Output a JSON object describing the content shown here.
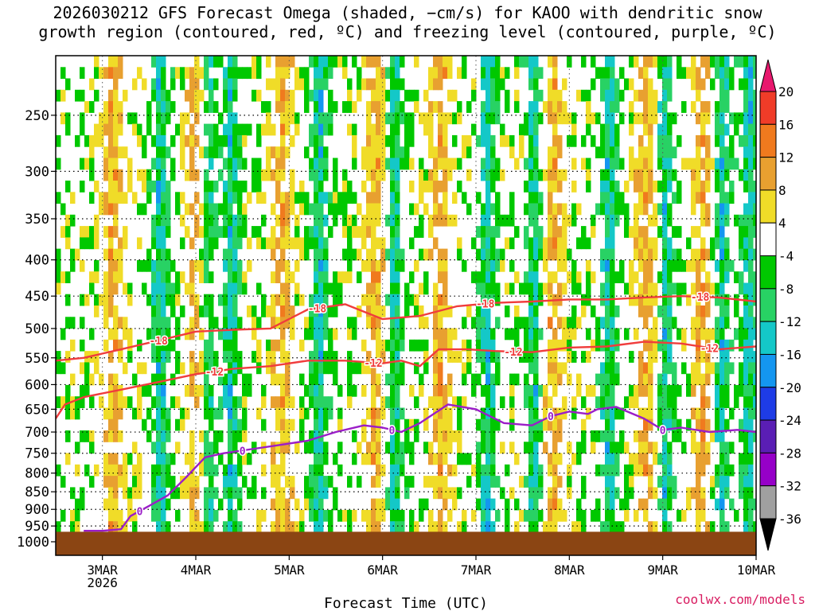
{
  "title_line1": "2026030212 GFS Forecast Omega (shaded, −cm/s) for KAOO with dendritic snow",
  "title_line2": "growth region (contoured, red, ºC) and freezing level (contoured, purple, ºC)",
  "credit": "coolwx.com/models",
  "chart_data": {
    "type": "heatmap",
    "xlabel": "Forecast Time (UTC)",
    "ylabel": "",
    "x_ticks": [
      "3MAR",
      "4MAR",
      "5MAR",
      "6MAR",
      "7MAR",
      "8MAR",
      "9MAR",
      "10MAR"
    ],
    "x_tick_values": [
      1,
      2,
      3,
      4,
      5,
      6,
      7,
      8
    ],
    "x_year_label": "2026",
    "xlim": [
      0.5,
      8
    ],
    "y_ticks": [
      250,
      300,
      350,
      400,
      450,
      500,
      550,
      600,
      650,
      700,
      750,
      800,
      850,
      900,
      950,
      1000
    ],
    "ylim": [
      1000,
      200
    ],
    "y_scale": "log-pressure (inverted)",
    "grid": true,
    "colorbar": {
      "labels": [
        "20",
        "16",
        "12",
        "8",
        "4",
        "-4",
        "-8",
        "-12",
        "-16",
        "-20",
        "-24",
        "-28",
        "-32",
        "-36"
      ],
      "colors": [
        "#e8186e",
        "#f03c28",
        "#f07a1e",
        "#e8a030",
        "#f0dc28",
        "#ffffff",
        "#00c800",
        "#28d264",
        "#14c8c8",
        "#1496f0",
        "#1e3ce6",
        "#5a1eb4",
        "#9600c8",
        "#a0a0a0",
        "#000000"
      ]
    },
    "contours": [
      {
        "name": "-18",
        "color": "#f03c3c",
        "x": [
          0.5,
          0.8,
          1.2,
          1.6,
          2.0,
          2.4,
          2.8,
          3.2,
          3.6,
          4.0,
          4.4,
          4.8,
          5.2,
          5.6,
          6.0,
          6.4,
          6.8,
          7.2,
          7.6,
          8.0
        ],
        "p": [
          555,
          550,
          535,
          520,
          505,
          502,
          500,
          470,
          462,
          485,
          480,
          465,
          460,
          458,
          455,
          455,
          452,
          450,
          452,
          458
        ],
        "labels_at": [
          1.6,
          3.3,
          5.1,
          7.4
        ]
      },
      {
        "name": "-12",
        "color": "#f03c3c",
        "x": [
          0.5,
          0.6,
          0.8,
          1.2,
          1.6,
          2.0,
          2.4,
          2.8,
          3.2,
          3.6,
          4.0,
          4.2,
          4.4,
          4.6,
          4.9,
          5.2,
          5.6,
          6.0,
          6.4,
          6.8,
          7.2,
          7.6,
          8.0
        ],
        "p": [
          670,
          640,
          625,
          610,
          595,
          580,
          570,
          565,
          555,
          555,
          560,
          555,
          565,
          535,
          535,
          538,
          540,
          532,
          530,
          522,
          525,
          535,
          530
        ],
        "labels_at": [
          2.2,
          3.9,
          5.4,
          7.5
        ]
      },
      {
        "name": "0",
        "color": "#9b1ec8",
        "x": [
          0.8,
          1.0,
          1.2,
          1.3,
          1.5,
          1.7,
          1.9,
          2.1,
          2.3,
          2.6,
          2.9,
          3.2,
          3.5,
          3.8,
          4.0,
          4.2,
          4.4,
          4.7,
          5.0,
          5.3,
          5.6,
          5.8,
          6.0,
          6.2,
          6.3,
          6.5,
          6.8,
          7.0,
          7.2,
          7.5,
          7.8,
          8.0
        ],
        "p": [
          965,
          965,
          960,
          920,
          890,
          860,
          810,
          760,
          750,
          740,
          730,
          720,
          700,
          685,
          690,
          700,
          680,
          640,
          650,
          680,
          685,
          665,
          655,
          660,
          650,
          645,
          670,
          695,
          690,
          700,
          695,
          700
        ],
        "labels_at": [
          1.4,
          2.5,
          4.1,
          5.8,
          7.0
        ]
      }
    ]
  }
}
